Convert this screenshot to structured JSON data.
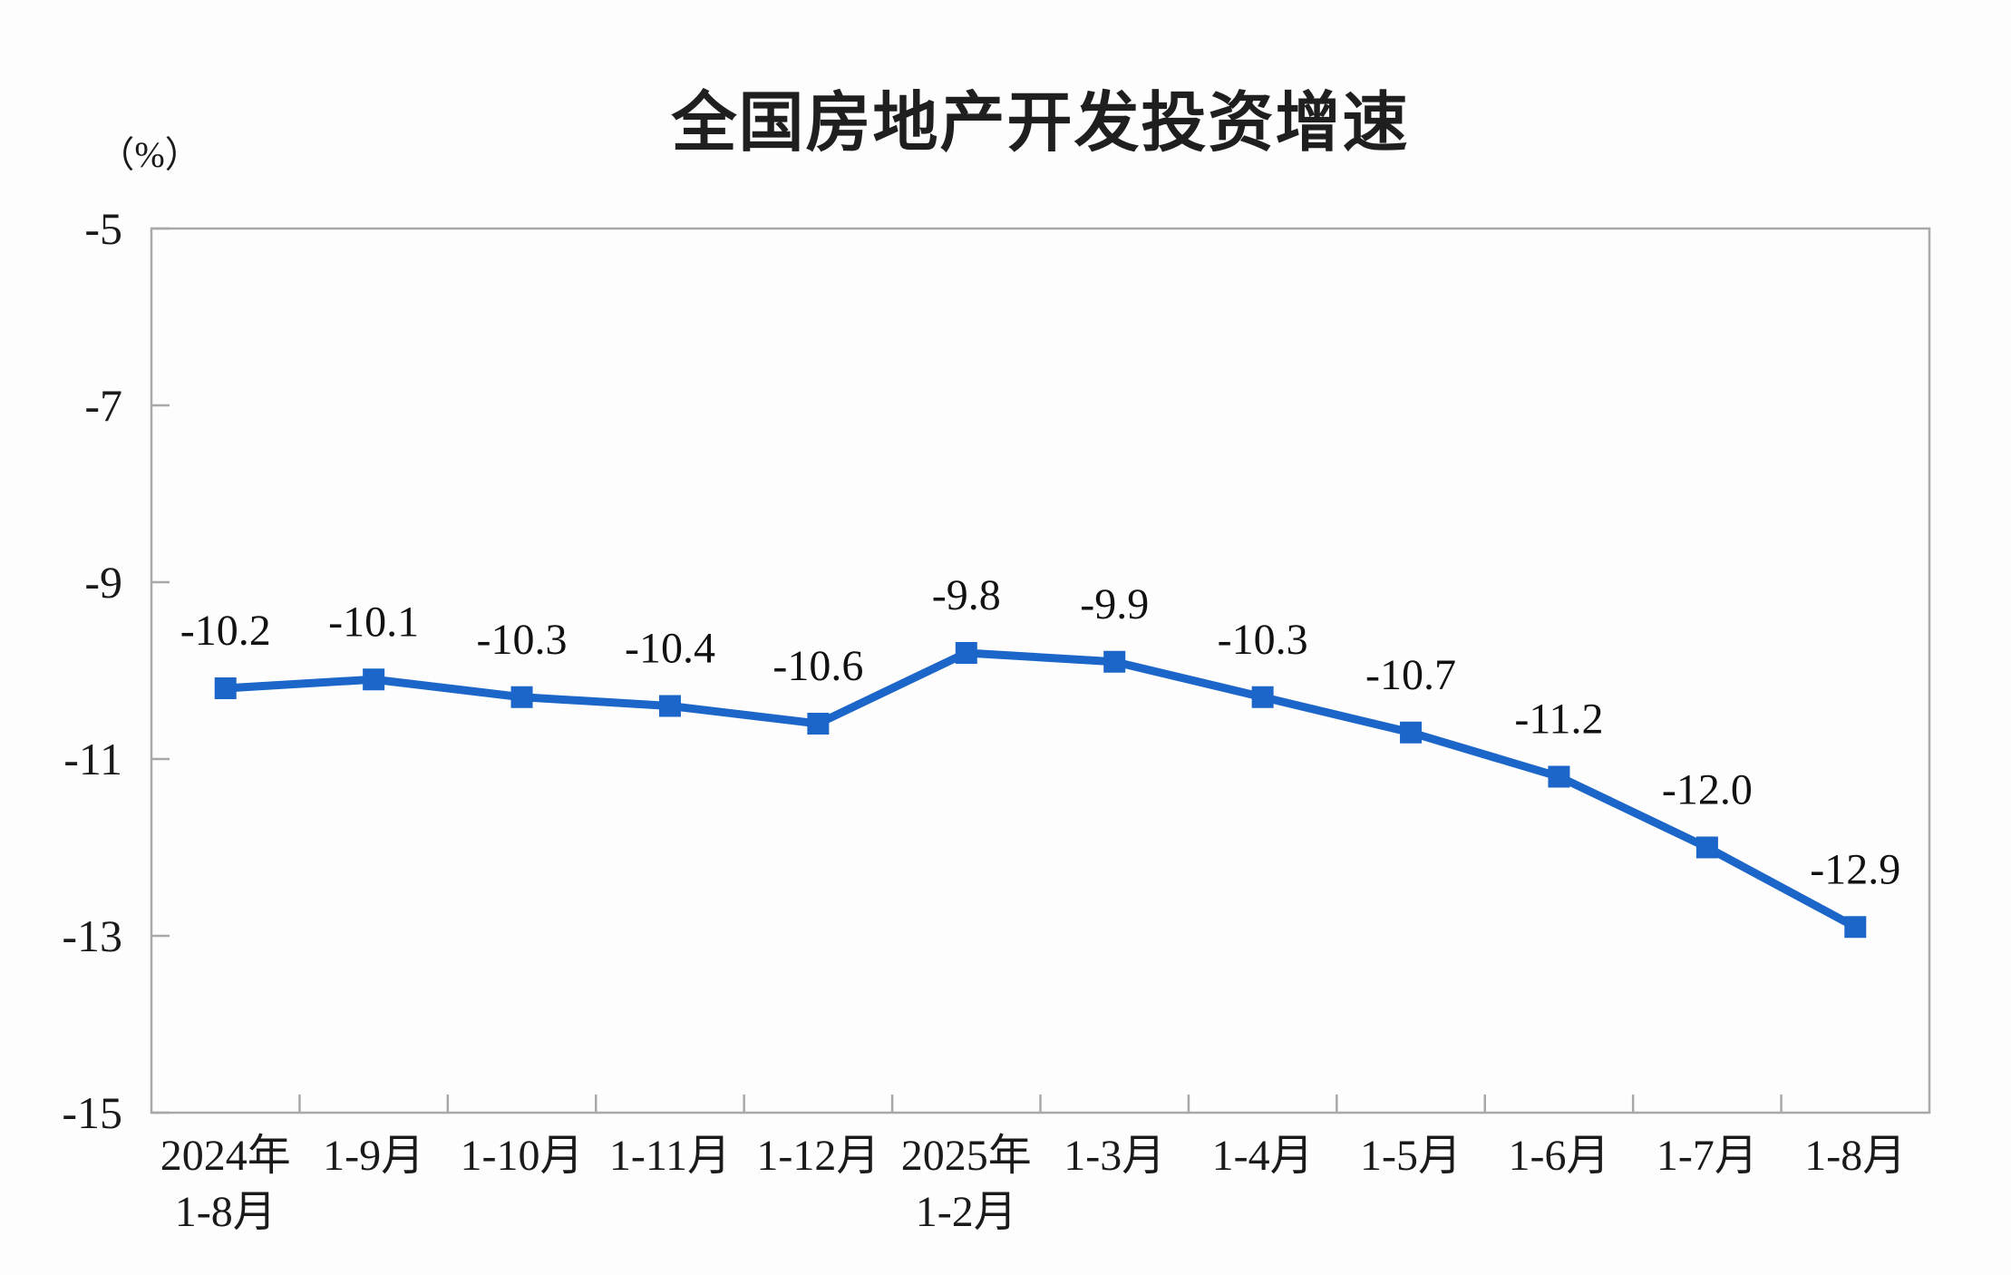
{
  "chart_data": {
    "type": "line",
    "title": "全国房地产开发投资增速",
    "unit": "（%）",
    "categories": [
      [
        "2024年",
        "1-8月"
      ],
      [
        "1-9月"
      ],
      [
        "1-10月"
      ],
      [
        "1-11月"
      ],
      [
        "1-12月"
      ],
      [
        "2025年",
        "1-2月"
      ],
      [
        "1-3月"
      ],
      [
        "1-4月"
      ],
      [
        "1-5月"
      ],
      [
        "1-6月"
      ],
      [
        "1-7月"
      ],
      [
        "1-8月"
      ]
    ],
    "series": [
      {
        "name": "全国房地产开发投资增速",
        "values": [
          -10.2,
          -10.1,
          -10.3,
          -10.4,
          -10.6,
          -9.8,
          -9.9,
          -10.3,
          -10.7,
          -11.2,
          -12.0,
          -12.9
        ],
        "data_labels": [
          "-10.2",
          "-10.1",
          "-10.3",
          "-10.4",
          "-10.6",
          "-9.8",
          "-9.9",
          "-10.3",
          "-10.7",
          "-11.2",
          "-12.0",
          "-12.9"
        ]
      }
    ],
    "xlabel": "",
    "ylabel": "（%）",
    "y_axis": {
      "min": -15,
      "max": -5,
      "tick_interval": 2,
      "ticks": [
        -5,
        -7,
        -9,
        -11,
        -13,
        -15
      ]
    },
    "grid": "off",
    "legend": "none",
    "plot_border": "box",
    "marker": "square",
    "colors": {
      "series_line": "#1b66c8",
      "marker_fill": "#1b66c8",
      "axis_border": "#a8a8a8",
      "tick_label": "#1a1a1a",
      "data_label": "#111111",
      "title": "#1f1f1f",
      "background": "#fdfdfd"
    }
  }
}
